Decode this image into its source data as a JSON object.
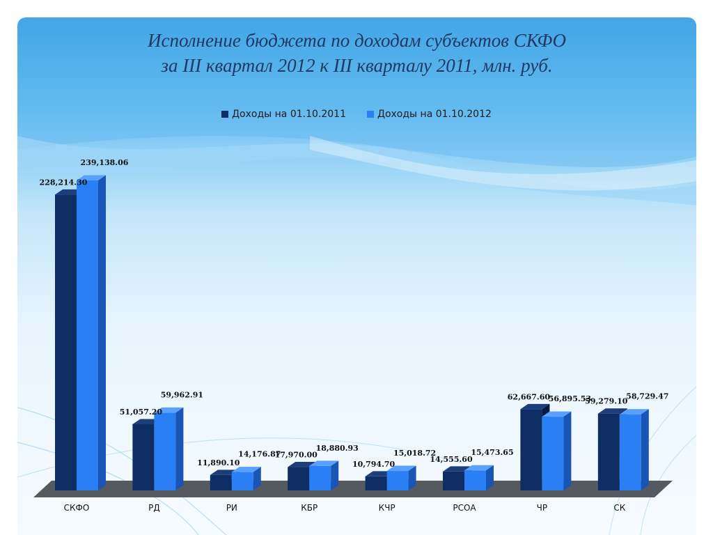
{
  "title": {
    "line1": "Исполнение бюджета по доходам субъектов СКФО",
    "line2": "за III квартал 2012 к III кварталу 2011, млн. руб."
  },
  "colors": {
    "series_2011": "#0d2d63",
    "series_2011_top": "#1c3f7c",
    "series_2011_side": "#061a3d",
    "series_2012": "#2b7ff5",
    "series_2012_top": "#5aa0ff",
    "series_2012_side": "#1a55b5",
    "floor": "#555a60"
  },
  "chart_data": {
    "type": "bar",
    "categories": [
      "СКФО",
      "РД",
      "РИ",
      "КБР",
      "КЧР",
      "РСОА",
      "ЧР",
      "СК"
    ],
    "series": [
      {
        "name": "Доходы на 01.10.2011",
        "values": [
          228214.3,
          51057.2,
          11890.1,
          17970.0,
          10794.7,
          14555.6,
          62667.6,
          59279.1
        ],
        "labels": [
          "228,214.30",
          "51,057.20",
          "11,890.10",
          "17,970.00",
          "10,794.70",
          "14,555.60",
          "62,667.60",
          "59,279.10"
        ]
      },
      {
        "name": "Доходы на 01.10.2012",
        "values": [
          239138.06,
          59962.91,
          14176.87,
          18880.93,
          15018.72,
          15473.65,
          56895.53,
          58729.47
        ],
        "labels": [
          "239,138.06",
          "59,962.91",
          "14,176.87",
          "18,880.93",
          "15,018.72",
          "15,473.65",
          "56,895.53",
          "58,729.47"
        ]
      }
    ],
    "legend_position": "top-center",
    "grid": false
  }
}
